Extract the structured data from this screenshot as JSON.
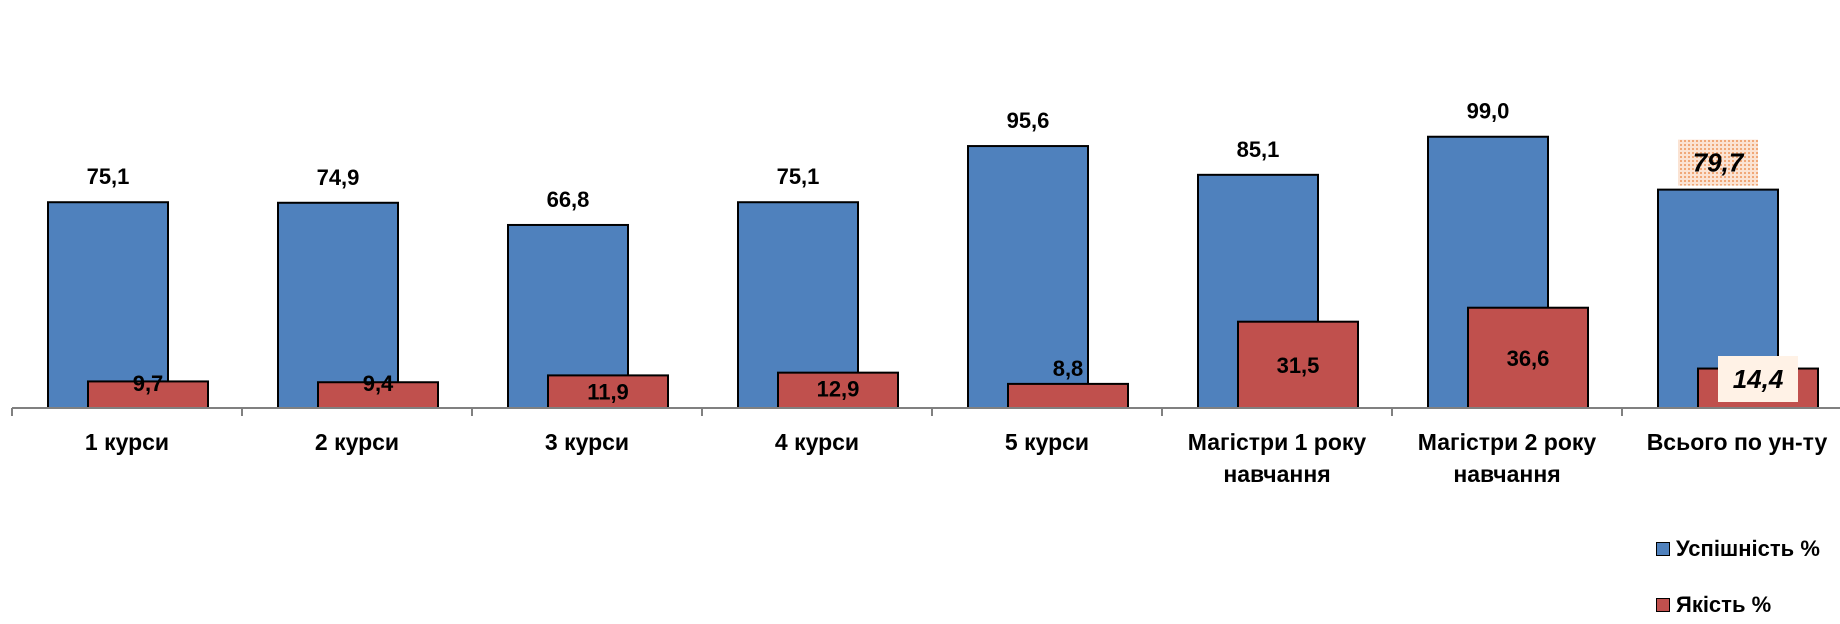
{
  "chart_data": {
    "type": "bar",
    "categories": [
      [
        "1 курси"
      ],
      [
        "2 курси"
      ],
      [
        "3 курси"
      ],
      [
        "4 курси"
      ],
      [
        "5 курси"
      ],
      [
        "Магістри 1 року",
        "навчання"
      ],
      [
        "Магістри 2 року",
        "навчання"
      ],
      [
        "Всього по ун-ту"
      ]
    ],
    "series": [
      {
        "name": "Успішність %",
        "color": "#4F81BD",
        "values": [
          75.1,
          74.9,
          66.8,
          75.1,
          95.6,
          85.1,
          99.0,
          79.7
        ],
        "labels": [
          "75,1",
          "74,9",
          "66,8",
          "75,1",
          "95,6",
          "85,1",
          "99,0",
          "79,7"
        ]
      },
      {
        "name": "Якість %",
        "color": "#C0504D",
        "values": [
          9.7,
          9.4,
          11.9,
          12.9,
          8.8,
          31.5,
          36.6,
          14.4
        ],
        "labels": [
          "9,7",
          "9,4",
          "11,9",
          "12,9",
          "8,8",
          "31,5",
          "36,6",
          "14,4"
        ]
      }
    ],
    "highlighted_category_index": 7,
    "highlight_color": "#F4C7A8",
    "ylim": [
      0,
      100
    ],
    "grid": false,
    "legend_position": "bottom-right"
  },
  "legend": {
    "items": [
      {
        "label": "Успішність %",
        "color": "#4F81BD"
      },
      {
        "label": "Якість %",
        "color": "#C0504D"
      }
    ]
  }
}
